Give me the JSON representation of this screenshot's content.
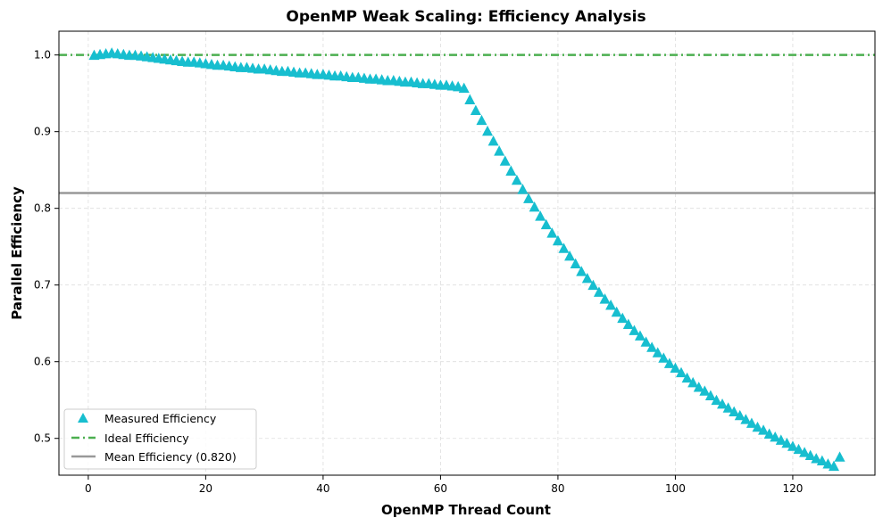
{
  "chart_data": {
    "type": "scatter",
    "title": "OpenMP Weak Scaling: Efficiency Analysis",
    "xlabel": "OpenMP Thread Count",
    "ylabel": "Parallel Efficiency",
    "xlim": [
      -5,
      134
    ],
    "ylim": [
      0.452,
      1.031
    ],
    "xticks": [
      0,
      20,
      40,
      60,
      80,
      100,
      120
    ],
    "yticks": [
      0.5,
      0.6,
      0.7,
      0.8,
      0.9,
      1.0
    ],
    "xtick_labels": [
      "0",
      "20",
      "40",
      "60",
      "80",
      "100",
      "120"
    ],
    "ytick_labels": [
      "0.5",
      "0.6",
      "0.7",
      "0.8",
      "0.9",
      "1.0"
    ],
    "grid": true,
    "legend_position": "lower left",
    "colors": {
      "measured": "#17becf",
      "ideal": "#4caf50",
      "mean": "#999999"
    },
    "series": [
      {
        "name": "Measured Efficiency",
        "marker": "triangle-up",
        "color": "#17becf",
        "x": [
          1,
          2,
          3,
          4,
          5,
          6,
          7,
          8,
          9,
          10,
          11,
          12,
          13,
          14,
          15,
          16,
          17,
          18,
          19,
          20,
          21,
          22,
          23,
          24,
          25,
          26,
          27,
          28,
          29,
          30,
          31,
          32,
          33,
          34,
          35,
          36,
          37,
          38,
          39,
          40,
          41,
          42,
          43,
          44,
          45,
          46,
          47,
          48,
          49,
          50,
          51,
          52,
          53,
          54,
          55,
          56,
          57,
          58,
          59,
          60,
          61,
          62,
          63,
          64,
          65,
          66,
          67,
          68,
          69,
          70,
          71,
          72,
          73,
          74,
          75,
          76,
          77,
          78,
          79,
          80,
          81,
          82,
          83,
          84,
          85,
          86,
          87,
          88,
          89,
          90,
          91,
          92,
          93,
          94,
          95,
          96,
          97,
          98,
          99,
          100,
          101,
          102,
          103,
          104,
          105,
          106,
          107,
          108,
          109,
          110,
          111,
          112,
          113,
          114,
          115,
          116,
          117,
          118,
          119,
          120,
          121,
          122,
          123,
          124,
          125,
          126,
          127,
          128
        ],
        "y": [
          1.0,
          1.001,
          1.002,
          1.003,
          1.002,
          1.001,
          1.0,
          1.0,
          0.999,
          0.998,
          0.997,
          0.996,
          0.995,
          0.994,
          0.993,
          0.992,
          0.991,
          0.991,
          0.99,
          0.989,
          0.988,
          0.987,
          0.987,
          0.986,
          0.985,
          0.984,
          0.984,
          0.983,
          0.982,
          0.982,
          0.981,
          0.98,
          0.979,
          0.979,
          0.978,
          0.977,
          0.977,
          0.976,
          0.975,
          0.975,
          0.974,
          0.973,
          0.973,
          0.972,
          0.971,
          0.971,
          0.97,
          0.969,
          0.969,
          0.968,
          0.967,
          0.967,
          0.966,
          0.965,
          0.965,
          0.964,
          0.963,
          0.963,
          0.962,
          0.961,
          0.961,
          0.96,
          0.959,
          0.957,
          0.942,
          0.928,
          0.915,
          0.901,
          0.888,
          0.875,
          0.862,
          0.849,
          0.837,
          0.825,
          0.813,
          0.802,
          0.79,
          0.779,
          0.768,
          0.758,
          0.748,
          0.738,
          0.728,
          0.718,
          0.709,
          0.7,
          0.691,
          0.682,
          0.674,
          0.665,
          0.657,
          0.649,
          0.641,
          0.634,
          0.626,
          0.619,
          0.612,
          0.605,
          0.598,
          0.592,
          0.586,
          0.579,
          0.573,
          0.567,
          0.562,
          0.556,
          0.55,
          0.545,
          0.54,
          0.535,
          0.53,
          0.525,
          0.52,
          0.515,
          0.511,
          0.506,
          0.502,
          0.498,
          0.494,
          0.49,
          0.486,
          0.482,
          0.478,
          0.474,
          0.471,
          0.467,
          0.464,
          0.476
        ]
      },
      {
        "name": "Ideal Efficiency",
        "type": "hline",
        "value": 1.0,
        "style": "dash-dot",
        "color": "#4caf50"
      },
      {
        "name": "Mean Efficiency (0.820)",
        "type": "hline",
        "value": 0.82,
        "style": "solid",
        "color": "#999999"
      }
    ]
  }
}
